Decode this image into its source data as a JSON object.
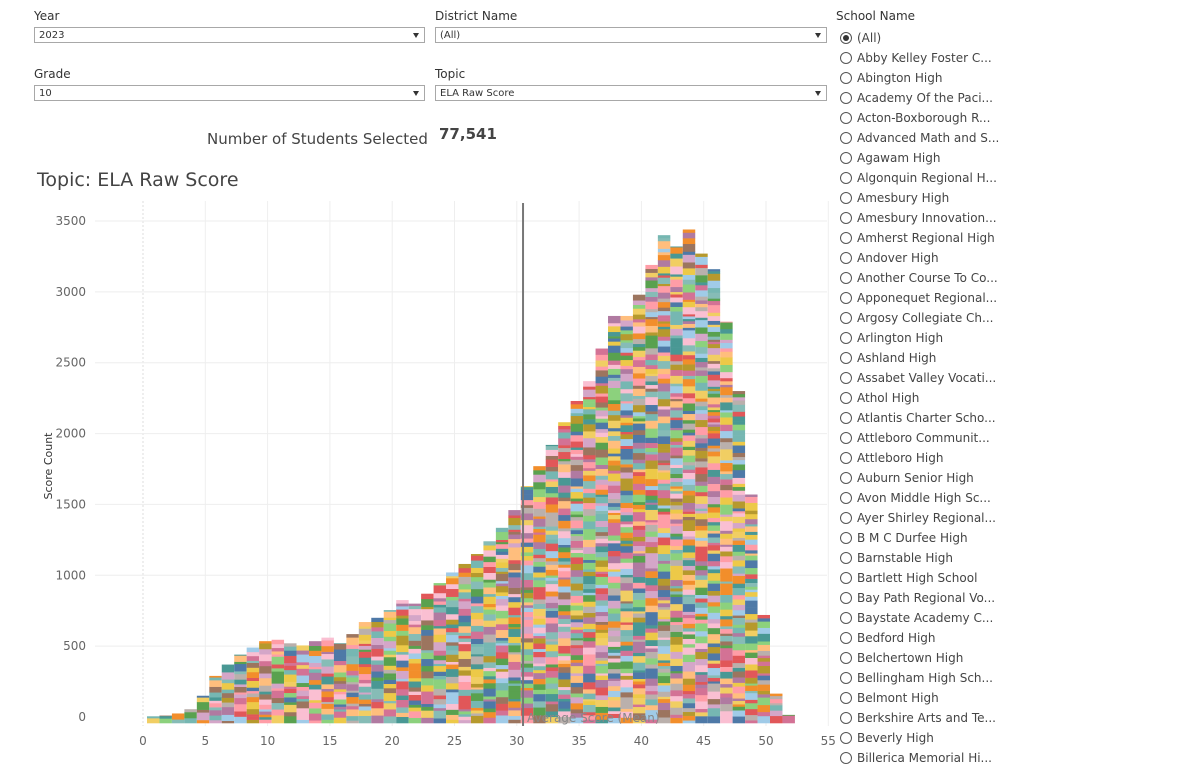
{
  "filters": {
    "year": {
      "label": "Year",
      "value": "2023"
    },
    "district": {
      "label": "District Name",
      "value": "(All)"
    },
    "grade": {
      "label": "Grade",
      "value": "10"
    },
    "topic": {
      "label": "Topic",
      "value": "ELA Raw Score"
    }
  },
  "students": {
    "label": "Number of Students Selected",
    "value": "77,541"
  },
  "school_filter": {
    "label": "School Name",
    "selected": "(All)",
    "items": [
      "(All)",
      "Abby Kelley Foster C...",
      "Abington High",
      "Academy Of the Paci...",
      "Acton-Boxborough R...",
      "Advanced Math and S...",
      "Agawam High",
      "Algonquin Regional H...",
      "Amesbury High",
      "Amesbury Innovation...",
      "Amherst Regional High",
      "Andover High",
      "Another Course To Co...",
      "Apponequet Regional...",
      "Argosy Collegiate Ch...",
      "Arlington High",
      "Ashland High",
      "Assabet Valley Vocati...",
      "Athol High",
      "Atlantis Charter Scho...",
      "Attleboro Communit...",
      "Attleboro High",
      "Auburn Senior High",
      "Avon Middle High Sc...",
      "Ayer Shirley Regional...",
      "B M C Durfee High",
      "Barnstable High",
      "Bartlett High School",
      "Bay Path Regional Vo...",
      "Baystate Academy C...",
      "Bedford High",
      "Belchertown High",
      "Bellingham High Sch...",
      "Belmont High",
      "Berkshire Arts and Te...",
      "Beverly High",
      "Billerica Memorial Hi..."
    ]
  },
  "chart_data": {
    "type": "bar",
    "stacked": true,
    "title": "Topic: ELA Raw Score",
    "ylabel": "Score Count",
    "xlabel": "",
    "xlim": [
      -4,
      55
    ],
    "ylim": [
      -100,
      3600
    ],
    "xticks": [
      0,
      5,
      10,
      15,
      20,
      25,
      30,
      35,
      40,
      45,
      50,
      55
    ],
    "yticks": [
      0,
      500,
      1000,
      1500,
      2000,
      2500,
      3000,
      3500
    ],
    "grid": true,
    "legend": "none",
    "x": [
      0,
      1,
      2,
      3,
      4,
      5,
      6,
      7,
      8,
      9,
      10,
      11,
      12,
      13,
      14,
      15,
      16,
      17,
      18,
      19,
      20,
      21,
      22,
      23,
      24,
      25,
      26,
      27,
      28,
      29,
      30,
      31,
      32,
      33,
      34,
      35,
      36,
      37,
      38,
      39,
      40,
      41,
      42,
      43,
      44,
      45,
      46,
      47,
      48,
      49,
      50,
      51
    ],
    "values": [
      5,
      10,
      25,
      55,
      150,
      290,
      370,
      440,
      490,
      535,
      545,
      520,
      505,
      535,
      560,
      520,
      585,
      670,
      700,
      755,
      825,
      800,
      870,
      945,
      1020,
      1080,
      1150,
      1240,
      1335,
      1460,
      1630,
      1770,
      1920,
      2080,
      2230,
      2370,
      2600,
      2830,
      2830,
      2980,
      3190,
      3400,
      3320,
      3440,
      3270,
      3160,
      2790,
      2300,
      1570,
      720,
      165,
      15
    ],
    "reference_line": {
      "x": 30.5,
      "label": "Average Score (Mean)"
    },
    "series_palette": [
      "#e15759",
      "#f28e2b",
      "#edc948",
      "#59a14f",
      "#76b7b2",
      "#4e79a7",
      "#b07aa1",
      "#ff9da7",
      "#9c755f",
      "#bab0ac",
      "#8cd17d",
      "#f1ce63",
      "#a0cbe8",
      "#ffbe7d",
      "#d37295",
      "#86bcb6",
      "#b6992d",
      "#499894",
      "#fabfd2",
      "#d4a6c8"
    ]
  }
}
